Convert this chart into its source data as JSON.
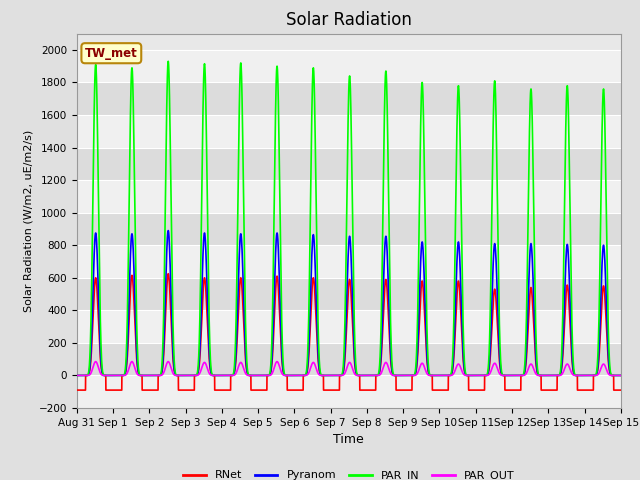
{
  "title": "Solar Radiation",
  "ylabel": "Solar Radiation (W/m2, uE/m2/s)",
  "xlabel": "Time",
  "ylim": [
    -200,
    2100
  ],
  "yticks": [
    -200,
    0,
    200,
    400,
    600,
    800,
    1000,
    1200,
    1400,
    1600,
    1800,
    2000
  ],
  "background_color": "#e0e0e0",
  "plot_bg_color": "#e8e8e8",
  "legend_label": "TW_met",
  "series_colors": {
    "RNet": "#ff0000",
    "Pyranom": "#0000ff",
    "PAR_IN": "#00ff00",
    "PAR_OUT": "#ff00ff"
  },
  "n_days": 15,
  "peaks": {
    "RNet": [
      600,
      615,
      625,
      600,
      600,
      610,
      600,
      590,
      590,
      580,
      580,
      530,
      540,
      555,
      550
    ],
    "Pyranom": [
      875,
      870,
      890,
      875,
      870,
      875,
      865,
      855,
      855,
      820,
      820,
      810,
      810,
      805,
      800
    ],
    "PAR_IN": [
      1910,
      1890,
      1930,
      1915,
      1920,
      1900,
      1890,
      1840,
      1870,
      1800,
      1780,
      1810,
      1760,
      1780,
      1760
    ],
    "PAR_OUT": [
      85,
      85,
      85,
      80,
      80,
      85,
      80,
      80,
      80,
      75,
      70,
      75,
      70,
      70,
      70
    ]
  },
  "rnet_night": -90,
  "line_width": 1.2,
  "x_tick_labels": [
    "Aug 31",
    "Sep 1",
    "Sep 2",
    "Sep 3",
    "Sep 4",
    "Sep 5",
    "Sep 6",
    "Sep 7",
    "Sep 8",
    "Sep 9",
    "Sep 10",
    "Sep 11",
    "Sep 12",
    "Sep 13",
    "Sep 14",
    "Sep 15"
  ],
  "title_fontsize": 12,
  "label_fontsize": 8,
  "tick_fontsize": 7.5,
  "legend_fontsize": 8
}
